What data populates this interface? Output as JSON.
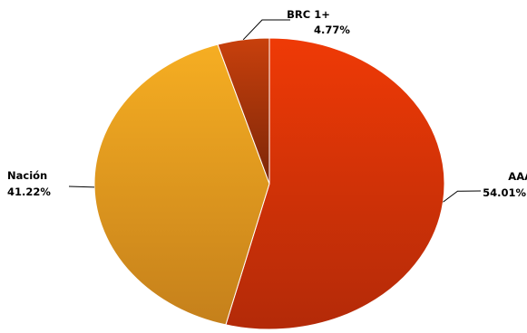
{
  "chart_data": {
    "type": "pie",
    "title": "",
    "slices": [
      {
        "label": "AAA",
        "value": 54.01,
        "display": "54.01%",
        "color_top": "#ef3a06",
        "color_bottom": "#b32a08",
        "label_side": "right"
      },
      {
        "label": "Nación",
        "value": 41.22,
        "display": "41.22%",
        "color_top": "#f6ae22",
        "color_bottom": "#c5801b",
        "label_side": "left"
      },
      {
        "label": "BRC 1+",
        "value": 4.77,
        "display": "4.77%",
        "color_top": "#c8400c",
        "color_bottom": "#7c2608",
        "label_side": "top"
      }
    ],
    "start_angle": "12 o'clock",
    "direction": "clockwise",
    "legend": "none",
    "data_labels": "outside with leader lines"
  }
}
